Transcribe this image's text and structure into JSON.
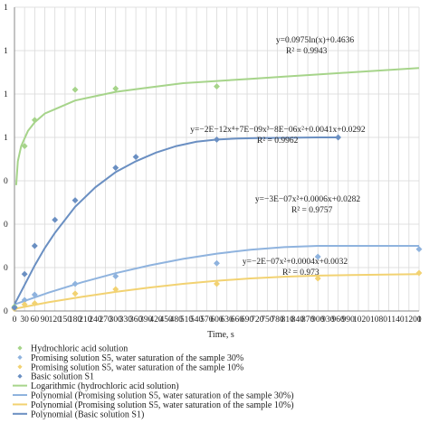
{
  "chart_data": {
    "type": "scatter",
    "title": "",
    "xlabel": "Time, s",
    "ylabel": "",
    "xlim": [
      0,
      1200
    ],
    "ylim": [
      0,
      1.4
    ],
    "x_ticks": [
      0,
      30,
      60,
      90,
      120,
      150,
      180,
      210,
      240,
      270,
      300,
      330,
      360,
      390,
      420,
      450,
      480,
      510,
      540,
      570,
      600,
      630,
      660,
      690,
      720,
      750,
      780,
      810,
      840,
      870,
      900,
      930,
      960,
      990,
      1020,
      1050,
      1080,
      1110,
      1140,
      1170,
      1200
    ],
    "x_tick_labels": [
      "0",
      "30",
      "60",
      "90",
      "120",
      "150",
      "180",
      "210",
      "240",
      "270",
      "300",
      "330",
      "360",
      "390",
      "420",
      "450",
      "480",
      "510",
      "540",
      "570",
      "600",
      "630",
      "660",
      "690",
      "720",
      "750",
      "780",
      "810",
      "840",
      "870",
      "900",
      "930",
      "960",
      "990",
      "1020",
      "1050",
      "1080",
      "1110",
      "1140",
      "1170",
      "1200"
    ],
    "x_tick_label_run": "1020108011401200",
    "x_tick_label_run_last": "1",
    "y_ticks": [
      0.0,
      0.2,
      0.4,
      0.6,
      0.8,
      1.0,
      1.2,
      1.4
    ],
    "y_tick_labels": [
      "0",
      "0",
      "0",
      "0",
      "1",
      "1",
      "1",
      "1"
    ],
    "grid": true,
    "legend_position": "bottom",
    "series": [
      {
        "name": "Hydrochloric acid solution",
        "kind": "points",
        "color": "#a6d48a",
        "x": [
          0,
          30,
          60,
          180,
          300,
          600
        ],
        "y": [
          0.02,
          0.76,
          0.88,
          1.02,
          1.025,
          1.035
        ]
      },
      {
        "name": "Promising solution S5, water saturation of the sample 30%",
        "kind": "points",
        "color": "#8fb3de",
        "x": [
          0,
          30,
          60,
          180,
          300,
          600,
          900,
          1200
        ],
        "y": [
          0.015,
          0.05,
          0.075,
          0.125,
          0.16,
          0.22,
          0.25,
          0.285
        ]
      },
      {
        "name": "Promising solution S5, water saturation of the sample 10%",
        "kind": "points",
        "color": "#f2d272",
        "x": [
          0,
          30,
          60,
          180,
          300,
          600,
          900,
          1200
        ],
        "y": [
          0.01,
          0.03,
          0.035,
          0.08,
          0.1,
          0.125,
          0.15,
          0.175
        ]
      },
      {
        "name": "Basic solution S1",
        "kind": "points",
        "color": "#6a8fc2",
        "x": [
          0,
          30,
          60,
          120,
          180,
          300,
          360,
          600,
          960
        ],
        "y": [
          0.015,
          0.17,
          0.3,
          0.42,
          0.51,
          0.66,
          0.71,
          0.79,
          0.8
        ]
      },
      {
        "name": "Logarithmic (hydrochloric acid solution)",
        "kind": "trend",
        "color": "#a6d48a",
        "x": [
          5,
          10,
          20,
          40,
          60,
          90,
          120,
          180,
          240,
          300,
          400,
          500,
          600,
          700,
          800,
          900,
          1000,
          1100,
          1200
        ],
        "y": [
          0.58,
          0.69,
          0.76,
          0.83,
          0.87,
          0.91,
          0.93,
          0.97,
          0.99,
          1.01,
          1.03,
          1.05,
          1.06,
          1.07,
          1.08,
          1.09,
          1.1,
          1.11,
          1.12
        ]
      },
      {
        "name": "Polynomial (Promising solution S5, water saturation of the sample 30%)",
        "kind": "trend",
        "color": "#8fb3de",
        "x": [
          0,
          100,
          200,
          300,
          400,
          500,
          600,
          700,
          800,
          900,
          1000,
          1100,
          1200
        ],
        "y": [
          0.03,
          0.084,
          0.132,
          0.174,
          0.21,
          0.24,
          0.264,
          0.282,
          0.294,
          0.3,
          0.3,
          0.3,
          0.3
        ]
      },
      {
        "name": "Polynomial (Promising solution S5, water saturation of the sample 10%)",
        "kind": "trend",
        "color": "#f2d272",
        "x": [
          0,
          100,
          200,
          300,
          400,
          500,
          600,
          700,
          800,
          900,
          1000,
          1100,
          1200
        ],
        "y": [
          0.01,
          0.04,
          0.065,
          0.088,
          0.108,
          0.125,
          0.139,
          0.15,
          0.158,
          0.163,
          0.166,
          0.168,
          0.17
        ]
      },
      {
        "name": "Polynomial (Basic solution S1)",
        "kind": "trend",
        "color": "#6a8fc2",
        "x": [
          0,
          30,
          60,
          90,
          120,
          180,
          240,
          300,
          360,
          420,
          480,
          540,
          600,
          660,
          720,
          780,
          840,
          900,
          960
        ],
        "y": [
          0.03,
          0.12,
          0.21,
          0.29,
          0.36,
          0.48,
          0.57,
          0.64,
          0.69,
          0.73,
          0.76,
          0.78,
          0.79,
          0.795,
          0.797,
          0.798,
          0.799,
          0.8,
          0.8
        ]
      }
    ],
    "annotations": [
      {
        "lines": [
          "y=0.0975ln(x)+0.4636",
          "R² = 0.9943"
        ],
        "series": "Logarithmic (hydrochloric acid solution)"
      },
      {
        "lines": [
          "y=−2E−12x⁴+7E−09x³−8E−06x²+0.0041x+0.0292",
          "R² = 0.9962"
        ],
        "series": "Polynomial (Basic solution S1)"
      },
      {
        "lines": [
          "y=−3E−07x²+0.0006x+0.0282",
          "R² = 0.9757"
        ],
        "series": "Polynomial (Promising solution S5, water saturation of the sample 30%)"
      },
      {
        "lines": [
          "y=−2E−07x²+0.0004x+0.0032",
          "R² = 0.973"
        ],
        "series": "Polynomial (Promising solution S5, water saturation of the sample 10%)"
      }
    ]
  }
}
